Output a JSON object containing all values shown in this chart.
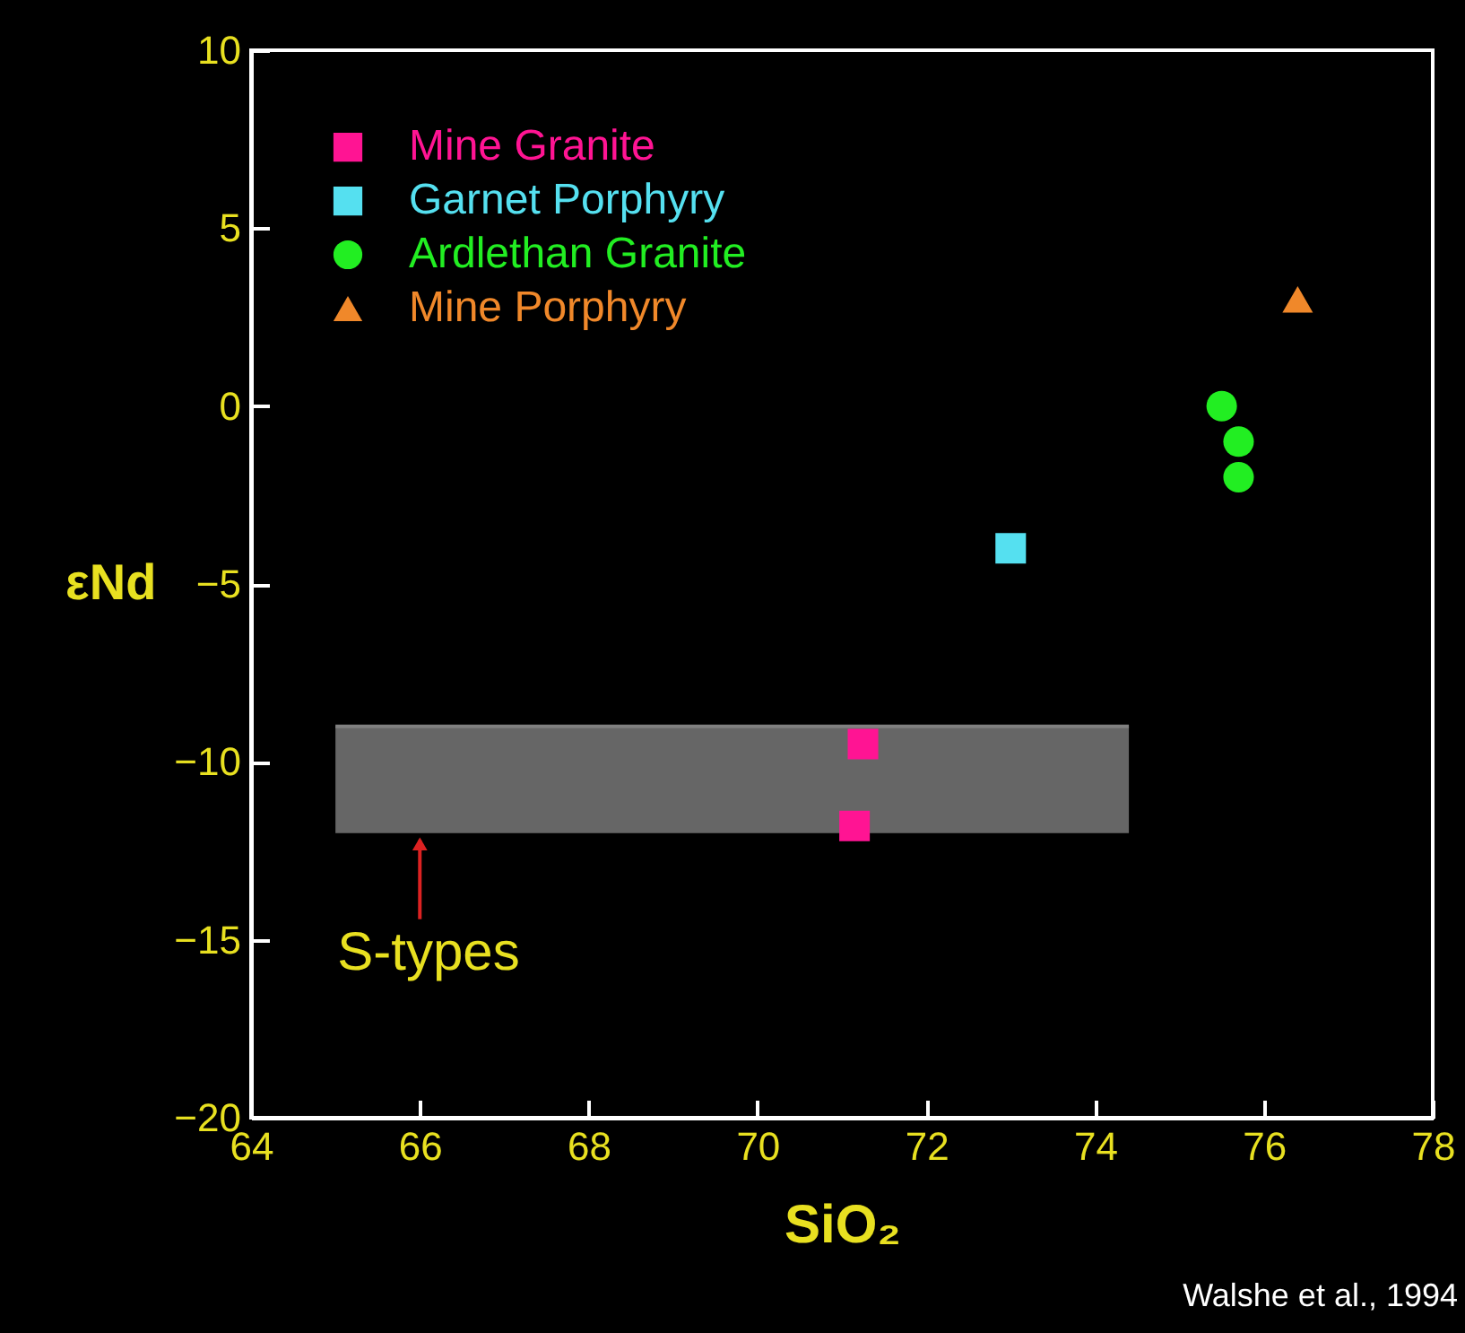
{
  "chart_data": {
    "type": "scatter",
    "xlabel": "SiO₂",
    "ylabel": "εNd",
    "xlim": [
      64,
      78
    ],
    "xticks": [
      64,
      66,
      68,
      70,
      72,
      74,
      76,
      78
    ],
    "ylim": [
      -20,
      10
    ],
    "yticks": [
      -20,
      -15,
      -10,
      -5,
      0,
      5,
      10
    ],
    "grid": false,
    "legend": "top left",
    "series": [
      {
        "type": "line",
        "color": "#808080",
        "x": [
          65,
          74.4
        ],
        "values": [
          -9,
          -9
        ],
        "upper": [
          -9,
          -9
        ],
        "lower": [
          -12,
          -12
        ]
      },
      {
        "name": "Mine Granite",
        "color": "#ff1493",
        "marker": "square",
        "x": [
          71.25,
          71.15
        ],
        "values": [
          -9.5,
          -11.8
        ]
      },
      {
        "name": "Garnet Porphyry",
        "color": "#55e0f0",
        "marker": "square",
        "x": [
          73.0
        ],
        "values": [
          -4.0
        ]
      },
      {
        "name": "Ardlethan Granite",
        "color": "#22ee22",
        "marker": "circle",
        "x": [
          75.5,
          75.7,
          75.7
        ],
        "values": [
          0.0,
          -1.0,
          -2.0
        ]
      },
      {
        "name": "Mine Porphyry",
        "color": "#f0882a",
        "marker": "triangle",
        "x": [
          76.4
        ],
        "values": [
          3.0
        ]
      }
    ],
    "annotations": [
      {
        "text": "S-types",
        "x": 66,
        "y": -12
      },
      "Walshe et al., 1994"
    ]
  }
}
